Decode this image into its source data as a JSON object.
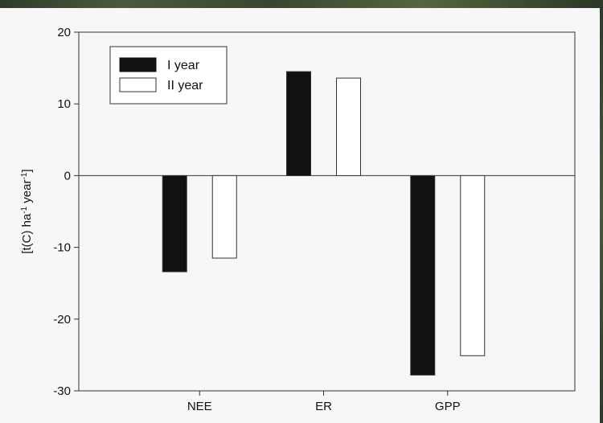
{
  "chart_data": {
    "type": "bar",
    "categories": [
      "NEE",
      "ER",
      "GPP"
    ],
    "series": [
      {
        "name": "I year",
        "values": [
          -13.4,
          14.5,
          -27.8
        ],
        "color": "#111111"
      },
      {
        "name": "II year",
        "values": [
          -11.5,
          13.6,
          -25.1
        ],
        "color": "#ffffff"
      }
    ],
    "ylabel": "[t(C) ha-1 year-1]",
    "ylabel_parts": [
      "[t(C) ha",
      "-1",
      " year",
      "-1",
      "]"
    ],
    "ylim": [
      -30,
      20
    ],
    "yticks": [
      20,
      10,
      0,
      -10,
      -20,
      -30
    ],
    "ytick_labels": [
      "20",
      "10",
      "0",
      "-10",
      "-20",
      "-30"
    ],
    "grid": false,
    "legend_position": "top-left"
  }
}
